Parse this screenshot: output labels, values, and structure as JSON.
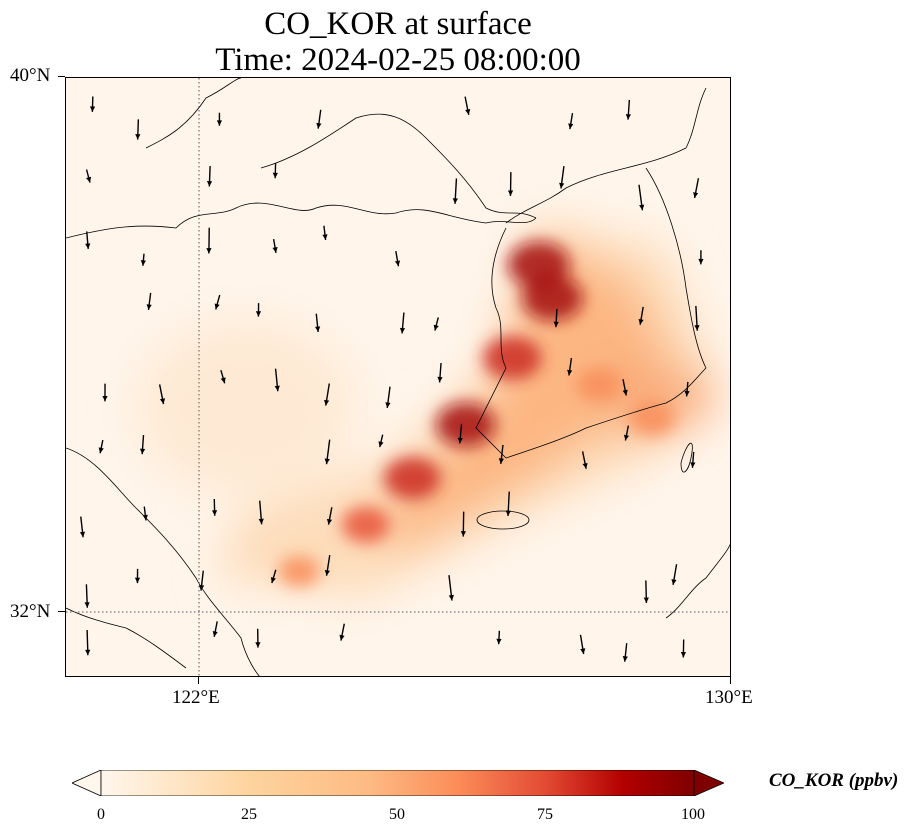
{
  "title": {
    "line1": "CO_KOR at surface",
    "line2": "Time: 2024-02-25 08:00:00"
  },
  "map": {
    "lon_range": [
      120,
      130
    ],
    "lat_range": [
      31,
      40
    ],
    "gridlines_lon": [
      122
    ],
    "gridlines_lat": [
      32
    ],
    "lon_ticks": [
      "122°E",
      "130°E"
    ],
    "lat_ticks": [
      "40°N",
      "32°N"
    ],
    "coastline_color": "#000000",
    "vector_color": "#000000",
    "background_color": "#fff5eb"
  },
  "plume": {
    "description_units": "ppbv",
    "cores": [
      {
        "lon": 127.1,
        "lat": 37.2,
        "value": 95
      },
      {
        "lon": 127.3,
        "lat": 36.7,
        "value": 92
      },
      {
        "lon": 126.7,
        "lat": 35.8,
        "value": 85
      },
      {
        "lon": 126.0,
        "lat": 34.8,
        "value": 88
      },
      {
        "lon": 125.2,
        "lat": 34.0,
        "value": 80
      },
      {
        "lon": 124.5,
        "lat": 33.3,
        "value": 55
      },
      {
        "lon": 123.5,
        "lat": 32.6,
        "value": 38
      },
      {
        "lon": 128.0,
        "lat": 35.4,
        "value": 45
      },
      {
        "lon": 128.8,
        "lat": 34.9,
        "value": 50
      }
    ]
  },
  "colorbar": {
    "label": "CO_KOR (ppbv)",
    "min": 0,
    "max": 100,
    "ticks": [
      "0",
      "25",
      "50",
      "75",
      "100"
    ],
    "extend": "both",
    "cmap": "OrRd"
  }
}
